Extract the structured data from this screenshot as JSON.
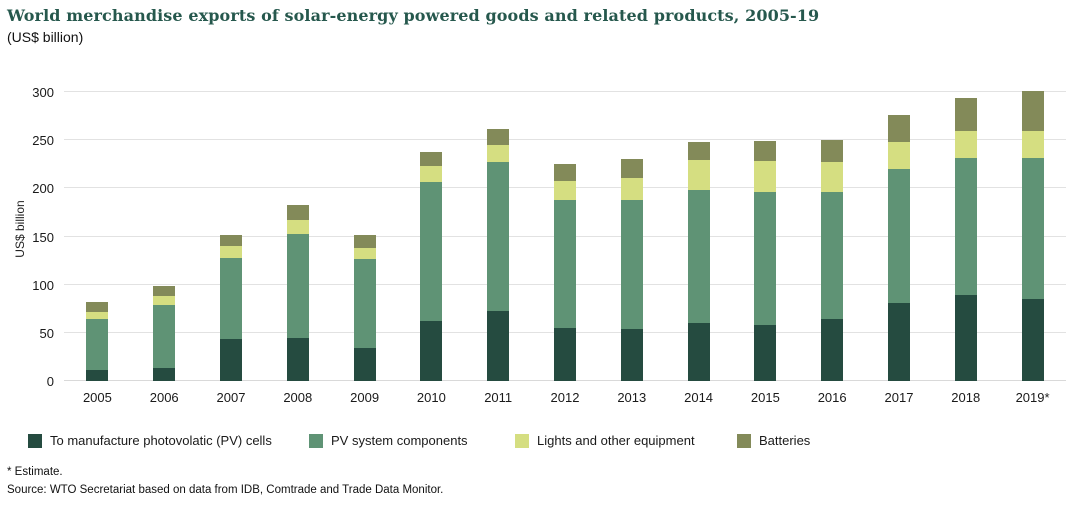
{
  "header": {
    "title": "World merchandise exports of solar-energy powered goods and related products, 2005-19",
    "subtitle": "(US$ billion)"
  },
  "footnotes": {
    "estimate": "* Estimate.",
    "source": "Source: WTO Secretariat based on data from IDB, Comtrade and Trade Data Monitor."
  },
  "chart_data": {
    "type": "bar",
    "stacked": true,
    "title": "World merchandise exports of solar-energy powered goods and related products, 2005-19",
    "subtitle": "(US$ billion)",
    "ylabel": "US$ billion",
    "ylim": [
      0,
      300
    ],
    "yticks": [
      0,
      50,
      100,
      150,
      200,
      250,
      300
    ],
    "grid": true,
    "legend_position": "bottom",
    "categories": [
      "2005",
      "2006",
      "2007",
      "2008",
      "2009",
      "2010",
      "2011",
      "2012",
      "2013",
      "2014",
      "2015",
      "2016",
      "2017",
      "2018",
      "2019*"
    ],
    "series": [
      {
        "name": "To manufacture photovolatic (PV) cells",
        "color": "#254B40",
        "values": [
          11,
          13,
          44,
          45,
          34,
          62,
          73,
          55,
          54,
          60,
          58,
          64,
          81,
          89,
          85
        ]
      },
      {
        "name": "PV system components",
        "color": "#5F9375",
        "values": [
          53,
          66,
          84,
          108,
          93,
          145,
          154,
          133,
          134,
          138,
          138,
          132,
          139,
          142,
          147
        ]
      },
      {
        "name": "Lights and other equipment",
        "color": "#D5DE81",
        "values": [
          8,
          9,
          12,
          14,
          11,
          16,
          18,
          20,
          23,
          31,
          32,
          31,
          28,
          29,
          28
        ]
      },
      {
        "name": "Batteries",
        "color": "#838A59",
        "values": [
          10,
          11,
          12,
          16,
          14,
          15,
          17,
          17,
          19,
          19,
          21,
          23,
          28,
          34,
          41
        ]
      }
    ],
    "footnotes": [
      "* Estimate.",
      "Source: WTO Secretariat based on data from IDB, Comtrade and Trade Data Monitor."
    ]
  }
}
